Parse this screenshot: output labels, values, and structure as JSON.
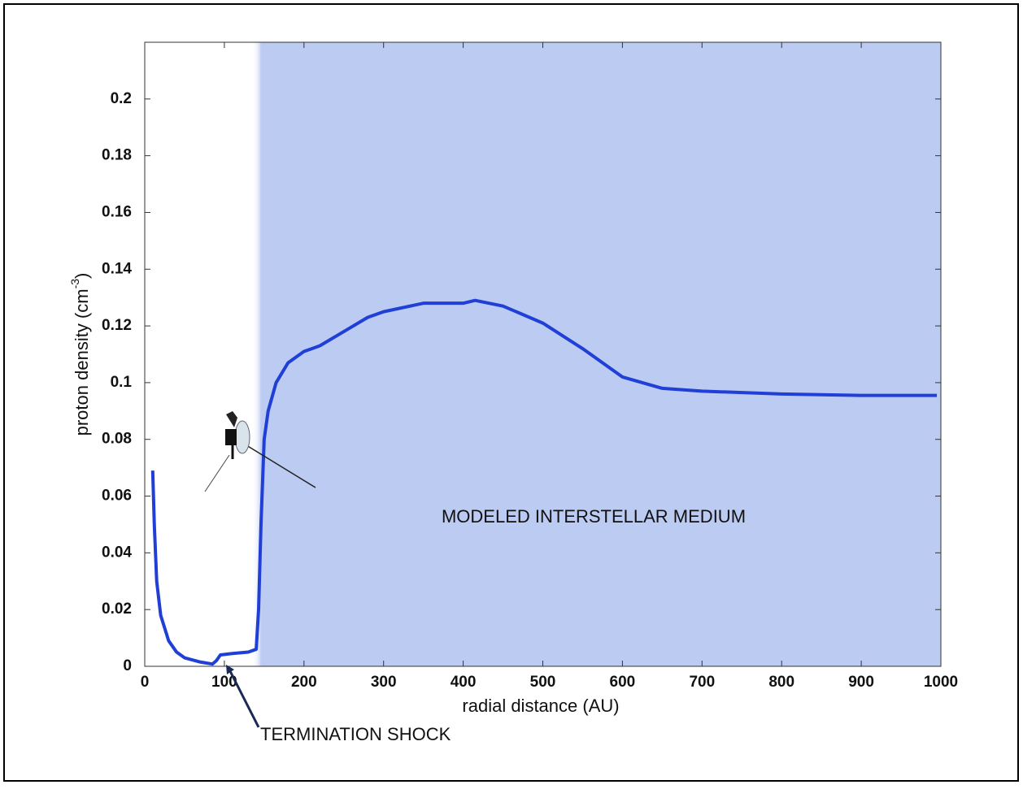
{
  "chart_data": {
    "type": "line",
    "xlabel": "radial distance (AU)",
    "ylabel": [
      "proton density (cm",
      "-3",
      ")"
    ],
    "xlim": [
      0,
      1000
    ],
    "xticks": [
      0,
      100,
      200,
      300,
      400,
      500,
      600,
      700,
      800,
      900,
      1000
    ],
    "ylim": [
      0,
      0.22
    ],
    "yticks": [
      0,
      0.02,
      0.04,
      0.06,
      0.08,
      0.1,
      0.12,
      0.14,
      0.16,
      0.18,
      0.2
    ],
    "grid": false,
    "shaded_region": {
      "x": [
        145,
        1000
      ],
      "color": "#bccbf2",
      "label": "MODELED INTERSTELLAR MEDIUM"
    },
    "annotations": [
      {
        "text": "TERMINATION SHOCK",
        "x": 95,
        "y": 0
      }
    ],
    "series": [
      {
        "color": "#1f3fd6",
        "x": [
          10,
          12,
          15,
          20,
          30,
          40,
          50,
          70,
          85,
          90,
          95,
          110,
          130,
          140,
          143,
          146,
          150,
          155,
          165,
          180,
          200,
          220,
          250,
          280,
          300,
          350,
          400,
          415,
          450,
          500,
          550,
          600,
          650,
          700,
          800,
          900,
          995
        ],
        "values": [
          0.069,
          0.05,
          0.03,
          0.018,
          0.009,
          0.005,
          0.003,
          0.0015,
          0.0008,
          0.002,
          0.004,
          0.0045,
          0.005,
          0.006,
          0.02,
          0.05,
          0.08,
          0.09,
          0.1,
          0.107,
          0.111,
          0.113,
          0.118,
          0.123,
          0.125,
          0.128,
          0.128,
          0.129,
          0.127,
          0.121,
          0.112,
          0.102,
          0.098,
          0.097,
          0.096,
          0.0955,
          0.0955
        ]
      }
    ]
  }
}
